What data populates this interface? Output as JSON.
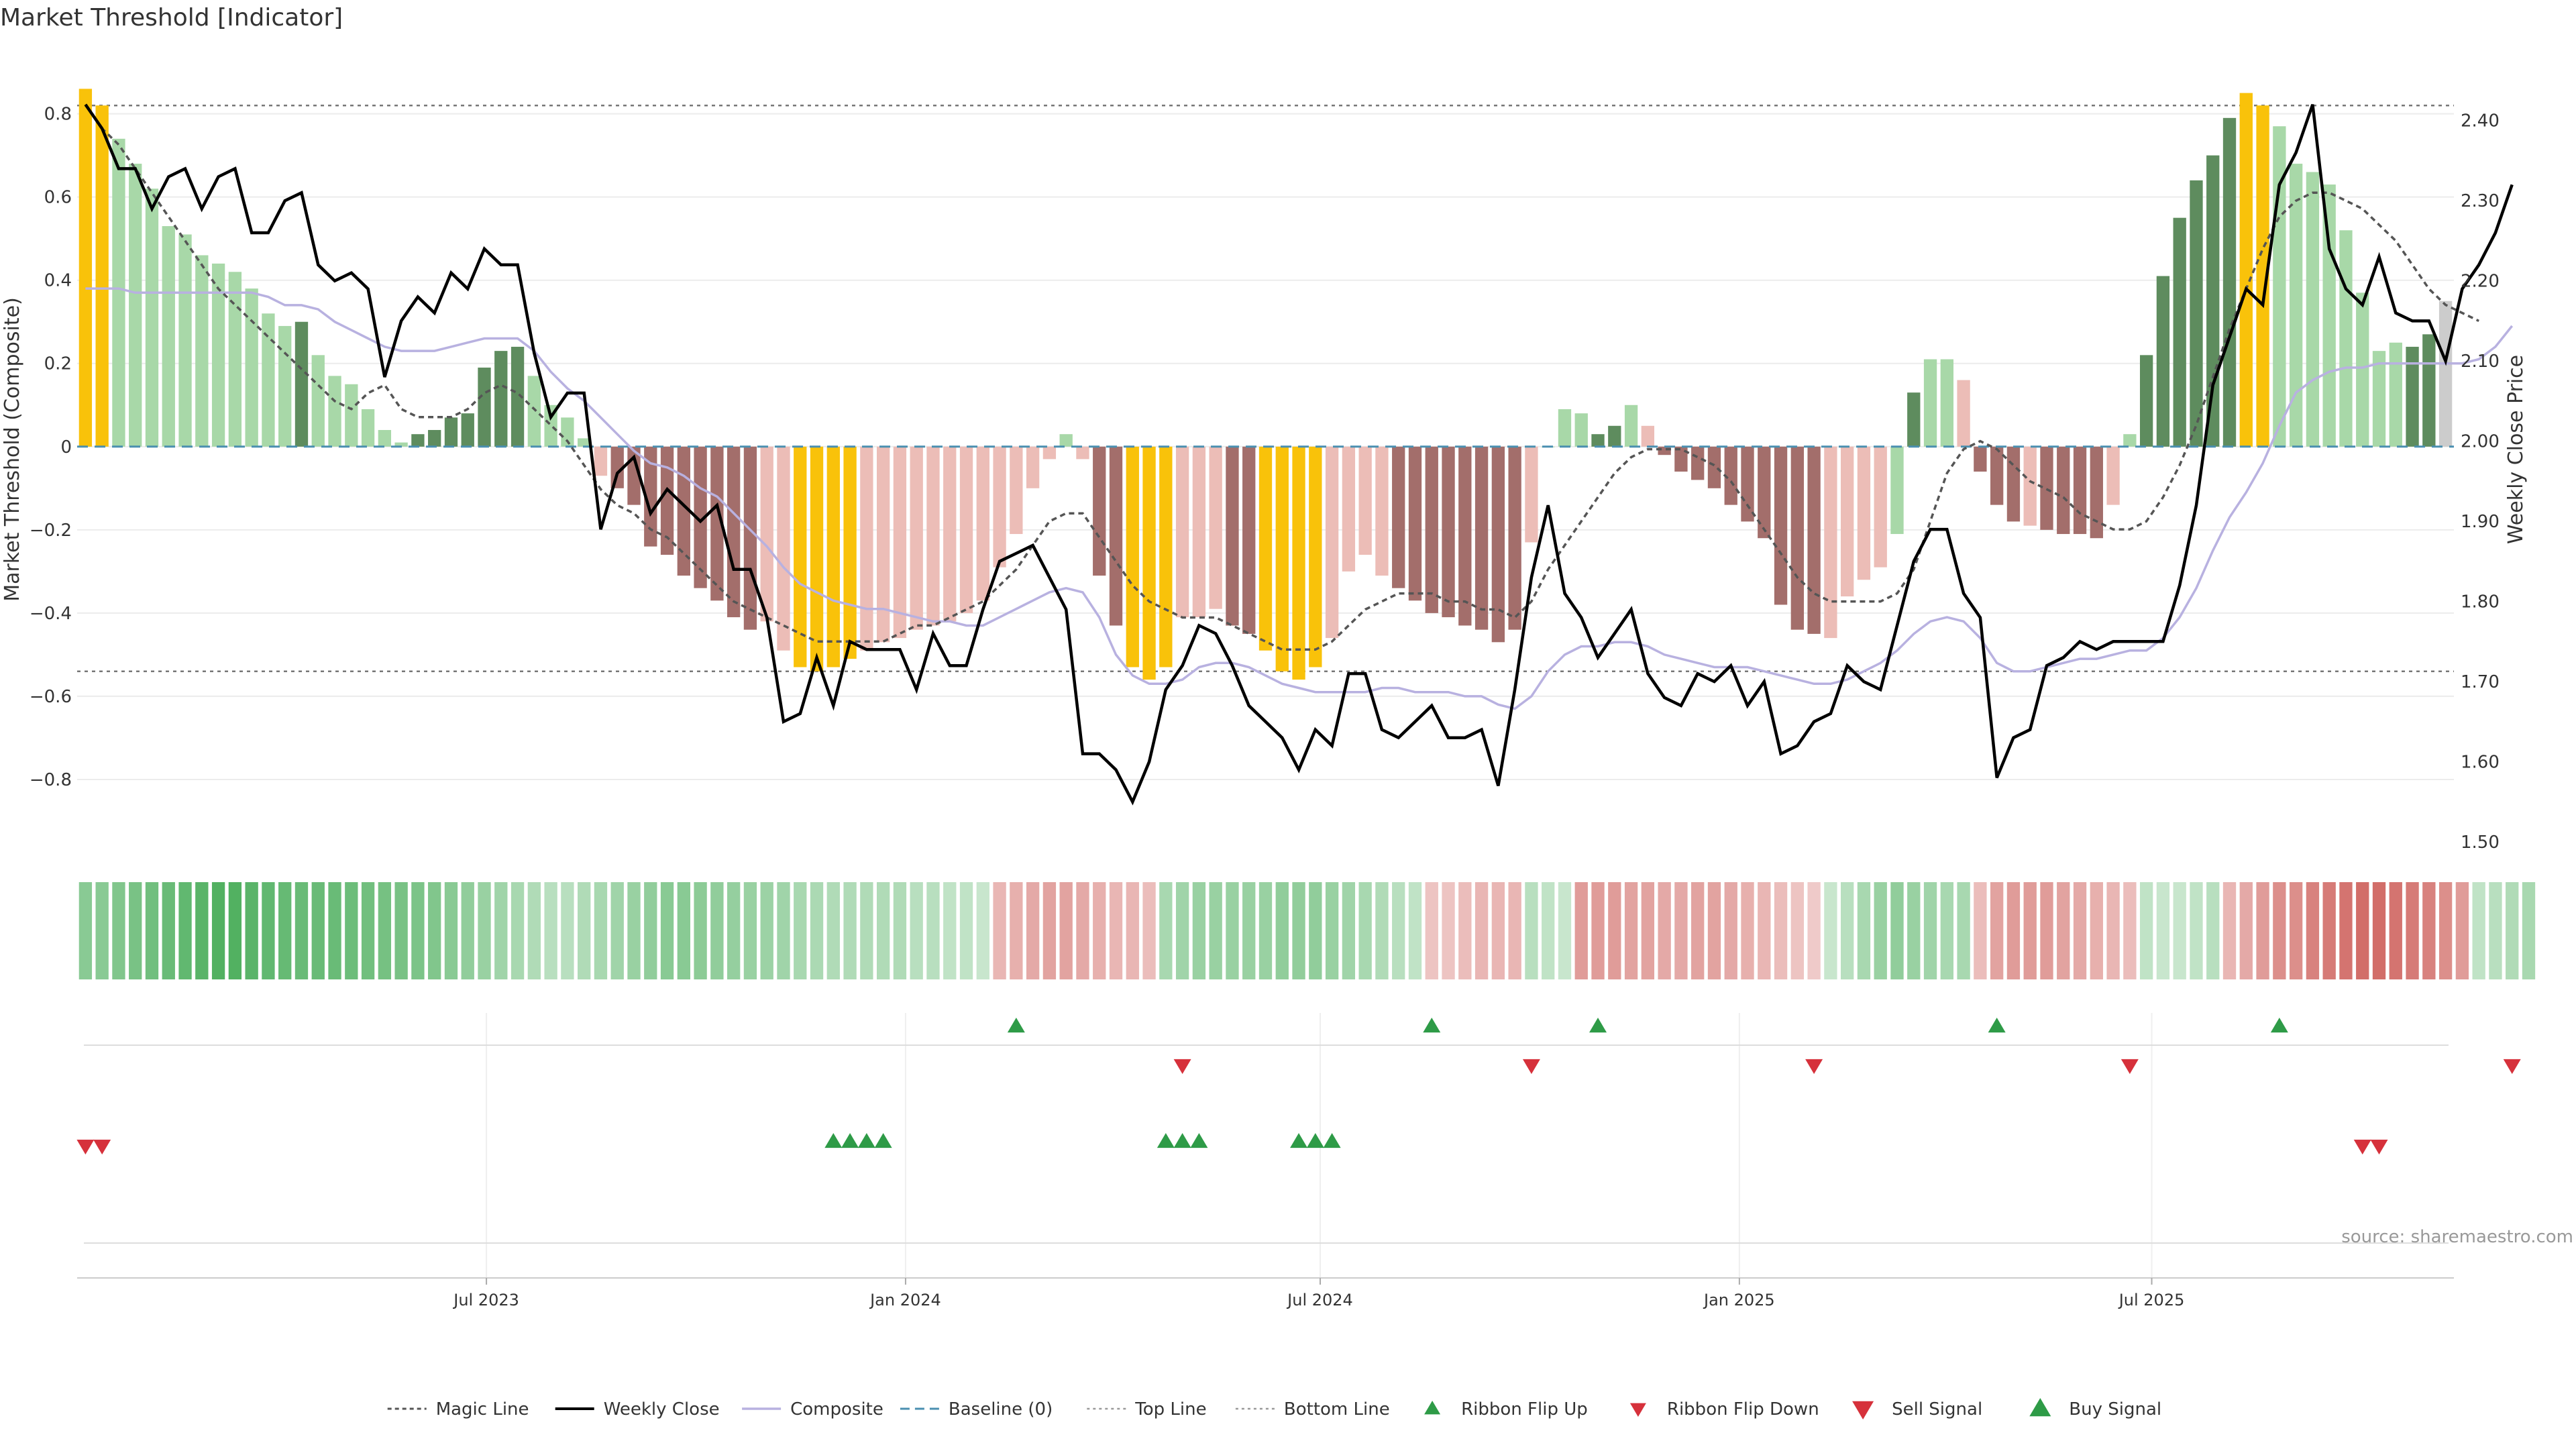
{
  "chart_data": {
    "type": "bar",
    "title": "Market Threshold [Indicator]",
    "ylabel": "Market Threshold (Composite)",
    "ylabel_right": "Weekly Close Price",
    "source": "source: sharemaestro.com",
    "ylim": [
      -0.95,
      0.88
    ],
    "ylim_right": [
      1.5,
      2.45
    ],
    "yticks": [
      -0.8,
      -0.6,
      -0.4,
      -0.2,
      0,
      0.2,
      0.4,
      0.6,
      0.8
    ],
    "yticks_right": [
      1.5,
      1.6,
      1.7,
      1.8,
      1.9,
      2.0,
      2.1,
      2.2,
      2.3,
      2.4
    ],
    "ytick_labels": [
      "−0.8",
      "−0.6",
      "−0.4",
      "−0.2",
      "0",
      "0.2",
      "0.4",
      "0.6",
      "0.8"
    ],
    "ytick_labels_right": [
      "1.50",
      "1.60",
      "1.70",
      "1.80",
      "1.90",
      "2.00",
      "2.10",
      "2.20",
      "2.30",
      "2.40"
    ],
    "x_start": "2023-01-06",
    "x_end": "2025-11-07",
    "xticks": [
      {
        "date": "2023-07-01",
        "label": "Jul 2023"
      },
      {
        "date": "2024-01-01",
        "label": "Jan 2024"
      },
      {
        "date": "2024-07-01",
        "label": "Jul 2024"
      },
      {
        "date": "2025-01-01",
        "label": "Jan 2025"
      },
      {
        "date": "2025-07-01",
        "label": "Jul 2025"
      }
    ],
    "top_line": 0.82,
    "bottom_line": -0.54,
    "baseline": 0,
    "grid": true,
    "legend_position": "bottom-center",
    "composite": [
      0.86,
      0.82,
      0.74,
      0.68,
      0.62,
      0.53,
      0.51,
      0.46,
      0.44,
      0.42,
      0.38,
      0.32,
      0.29,
      0.3,
      0.22,
      0.17,
      0.15,
      0.09,
      0.04,
      0.01,
      0.03,
      0.04,
      0.07,
      0.08,
      0.19,
      0.23,
      0.24,
      0.17,
      0.1,
      0.07,
      0.02,
      -0.07,
      -0.1,
      -0.14,
      -0.24,
      -0.26,
      -0.31,
      -0.34,
      -0.37,
      -0.41,
      -0.44,
      -0.42,
      -0.49,
      -0.53,
      -0.54,
      -0.53,
      -0.51,
      -0.49,
      -0.47,
      -0.46,
      -0.44,
      -0.43,
      -0.42,
      -0.4,
      -0.37,
      -0.29,
      -0.21,
      -0.1,
      -0.03,
      0.03,
      -0.03,
      -0.31,
      -0.43,
      -0.53,
      -0.56,
      -0.53,
      -0.41,
      -0.41,
      -0.39,
      -0.43,
      -0.45,
      -0.49,
      -0.54,
      -0.56,
      -0.53,
      -0.46,
      -0.3,
      -0.26,
      -0.31,
      -0.34,
      -0.37,
      -0.4,
      -0.41,
      -0.43,
      -0.44,
      -0.47,
      -0.44,
      -0.23,
      0.0,
      0.09,
      0.08,
      0.03,
      0.05,
      0.1,
      0.05,
      -0.02,
      -0.06,
      -0.08,
      -0.1,
      -0.14,
      -0.18,
      -0.22,
      -0.38,
      -0.44,
      -0.45,
      -0.46,
      -0.36,
      -0.32,
      -0.29,
      -0.21,
      0.13,
      0.21,
      0.21,
      0.16,
      -0.06,
      -0.14,
      -0.18,
      -0.19,
      -0.2,
      -0.21,
      -0.21,
      -0.22,
      -0.14,
      0.03,
      0.22,
      0.41,
      0.55,
      0.64,
      0.7,
      0.79,
      0.85,
      0.82,
      0.77,
      0.68,
      0.66,
      0.63,
      0.52,
      0.37,
      0.23,
      0.25,
      0.24,
      0.27,
      0.35
    ],
    "bar_colors": [
      "gold",
      "gold",
      "light-green",
      "light-green",
      "light-green",
      "light-green",
      "light-green",
      "light-green",
      "light-green",
      "light-green",
      "light-green",
      "light-green",
      "light-green",
      "dark-green",
      "light-green",
      "light-green",
      "light-green",
      "light-green",
      "light-green",
      "light-green",
      "dark-green",
      "dark-green",
      "dark-green",
      "dark-green",
      "dark-green",
      "dark-green",
      "dark-green",
      "light-green",
      "light-green",
      "light-green",
      "light-green",
      "light-red",
      "dark-red",
      "dark-red",
      "dark-red",
      "dark-red",
      "dark-red",
      "dark-red",
      "dark-red",
      "dark-red",
      "dark-red",
      "light-red",
      "light-red",
      "gold",
      "gold",
      "gold",
      "gold",
      "light-red",
      "light-red",
      "light-red",
      "light-red",
      "light-red",
      "light-red",
      "light-red",
      "light-red",
      "light-red",
      "light-red",
      "light-red",
      "light-red",
      "light-green",
      "light-red",
      "dark-red",
      "dark-red",
      "gold",
      "gold",
      "gold",
      "light-red",
      "light-red",
      "light-red",
      "dark-red",
      "dark-red",
      "gold",
      "gold",
      "gold",
      "gold",
      "light-red",
      "light-red",
      "light-red",
      "light-red",
      "dark-red",
      "dark-red",
      "dark-red",
      "dark-red",
      "dark-red",
      "dark-red",
      "dark-red",
      "dark-red",
      "light-red",
      "light-green",
      "light-green",
      "light-green",
      "dark-green",
      "dark-green",
      "light-green",
      "light-red",
      "dark-red",
      "dark-red",
      "dark-red",
      "dark-red",
      "dark-red",
      "dark-red",
      "dark-red",
      "dark-red",
      "dark-red",
      "dark-red",
      "light-red",
      "light-red",
      "light-red",
      "light-red",
      "light-green",
      "dark-green",
      "light-green",
      "light-green",
      "light-red",
      "dark-red",
      "dark-red",
      "dark-red",
      "light-red",
      "dark-red",
      "dark-red",
      "dark-red",
      "dark-red",
      "light-red",
      "light-green",
      "dark-green",
      "dark-green",
      "dark-green",
      "dark-green",
      "dark-green",
      "dark-green",
      "gold",
      "gold",
      "light-green",
      "light-green",
      "light-green",
      "light-green",
      "light-green",
      "light-green",
      "light-green",
      "light-green",
      "dark-green",
      "dark-green"
    ],
    "weekly_close": [
      2.42,
      2.39,
      2.34,
      2.34,
      2.29,
      2.33,
      2.34,
      2.29,
      2.33,
      2.34,
      2.26,
      2.26,
      2.3,
      2.31,
      2.22,
      2.2,
      2.21,
      2.19,
      2.08,
      2.15,
      2.18,
      2.16,
      2.21,
      2.19,
      2.24,
      2.22,
      2.22,
      2.11,
      2.03,
      2.06,
      2.06,
      1.89,
      1.96,
      1.98,
      1.91,
      1.94,
      1.92,
      1.9,
      1.92,
      1.84,
      1.84,
      1.78,
      1.65,
      1.66,
      1.73,
      1.67,
      1.75,
      1.74,
      1.74,
      1.74,
      1.69,
      1.76,
      1.72,
      1.72,
      1.79,
      1.85,
      1.86,
      1.87,
      1.83,
      1.79,
      1.61,
      1.61,
      1.59,
      1.55,
      1.6,
      1.69,
      1.72,
      1.77,
      1.76,
      1.72,
      1.67,
      1.65,
      1.63,
      1.59,
      1.64,
      1.62,
      1.71,
      1.71,
      1.64,
      1.63,
      1.65,
      1.67,
      1.63,
      1.63,
      1.64,
      1.57,
      1.69,
      1.83,
      1.92,
      1.81,
      1.78,
      1.73,
      1.76,
      1.79,
      1.71,
      1.68,
      1.67,
      1.71,
      1.7,
      1.72,
      1.67,
      1.7,
      1.61,
      1.62,
      1.65,
      1.66,
      1.72,
      1.7,
      1.69,
      1.77,
      1.85,
      1.89,
      1.89,
      1.81,
      1.78,
      1.58,
      1.63,
      1.64,
      1.72,
      1.73,
      1.75,
      1.74,
      1.75,
      1.75,
      1.75,
      1.75,
      1.82,
      1.92,
      2.07,
      2.13,
      2.19,
      2.17,
      2.32,
      2.36,
      2.42,
      2.24,
      2.19,
      2.17,
      2.23,
      2.16,
      2.15,
      2.15,
      2.1,
      2.19,
      2.22,
      2.26,
      2.32
    ],
    "magic_line": [
      2.42,
      2.39,
      2.37,
      2.34,
      2.31,
      2.28,
      2.25,
      2.22,
      2.19,
      2.17,
      2.15,
      2.13,
      2.11,
      2.09,
      2.07,
      2.05,
      2.04,
      2.06,
      2.07,
      2.04,
      2.03,
      2.03,
      2.03,
      2.04,
      2.06,
      2.07,
      2.06,
      2.04,
      2.02,
      2.0,
      1.97,
      1.94,
      1.92,
      1.91,
      1.89,
      1.88,
      1.86,
      1.84,
      1.82,
      1.8,
      1.79,
      1.78,
      1.77,
      1.76,
      1.75,
      1.75,
      1.75,
      1.75,
      1.75,
      1.76,
      1.77,
      1.77,
      1.78,
      1.79,
      1.8,
      1.82,
      1.84,
      1.87,
      1.9,
      1.91,
      1.91,
      1.88,
      1.85,
      1.82,
      1.8,
      1.79,
      1.78,
      1.78,
      1.78,
      1.77,
      1.76,
      1.75,
      1.74,
      1.74,
      1.74,
      1.75,
      1.77,
      1.79,
      1.8,
      1.81,
      1.81,
      1.81,
      1.8,
      1.8,
      1.79,
      1.79,
      1.78,
      1.8,
      1.84,
      1.87,
      1.9,
      1.93,
      1.96,
      1.98,
      1.99,
      1.99,
      1.99,
      1.98,
      1.97,
      1.95,
      1.92,
      1.89,
      1.86,
      1.83,
      1.81,
      1.8,
      1.8,
      1.8,
      1.8,
      1.81,
      1.84,
      1.9,
      1.96,
      1.99,
      2.0,
      1.99,
      1.97,
      1.95,
      1.94,
      1.93,
      1.91,
      1.9,
      1.89,
      1.89,
      1.9,
      1.93,
      1.97,
      2.02,
      2.08,
      2.14,
      2.19,
      2.24,
      2.28,
      2.3,
      2.31,
      2.31,
      2.3,
      2.29,
      2.27,
      2.25,
      2.22,
      2.19,
      2.17,
      2.16,
      2.15
    ],
    "composite_line": [
      0.38,
      0.38,
      0.38,
      0.37,
      0.37,
      0.37,
      0.37,
      0.37,
      0.37,
      0.37,
      0.37,
      0.36,
      0.34,
      0.34,
      0.33,
      0.3,
      0.28,
      0.26,
      0.24,
      0.23,
      0.23,
      0.23,
      0.24,
      0.25,
      0.26,
      0.26,
      0.26,
      0.23,
      0.18,
      0.14,
      0.11,
      0.07,
      0.03,
      -0.01,
      -0.04,
      -0.05,
      -0.07,
      -0.1,
      -0.12,
      -0.16,
      -0.2,
      -0.24,
      -0.29,
      -0.33,
      -0.35,
      -0.37,
      -0.38,
      -0.39,
      -0.39,
      -0.4,
      -0.41,
      -0.42,
      -0.42,
      -0.43,
      -0.43,
      -0.41,
      -0.39,
      -0.37,
      -0.35,
      -0.34,
      -0.35,
      -0.41,
      -0.5,
      -0.55,
      -0.57,
      -0.57,
      -0.56,
      -0.53,
      -0.52,
      -0.52,
      -0.53,
      -0.55,
      -0.57,
      -0.58,
      -0.59,
      -0.59,
      -0.59,
      -0.59,
      -0.58,
      -0.58,
      -0.59,
      -0.59,
      -0.59,
      -0.6,
      -0.6,
      -0.62,
      -0.63,
      -0.6,
      -0.54,
      -0.5,
      -0.48,
      -0.48,
      -0.47,
      -0.47,
      -0.48,
      -0.5,
      -0.51,
      -0.52,
      -0.53,
      -0.53,
      -0.53,
      -0.54,
      -0.55,
      -0.56,
      -0.57,
      -0.57,
      -0.56,
      -0.54,
      -0.52,
      -0.49,
      -0.45,
      -0.42,
      -0.41,
      -0.42,
      -0.46,
      -0.52,
      -0.54,
      -0.54,
      -0.53,
      -0.52,
      -0.51,
      -0.51,
      -0.5,
      -0.49,
      -0.49,
      -0.46,
      -0.41,
      -0.34,
      -0.25,
      -0.17,
      -0.11,
      -0.04,
      0.05,
      0.13,
      0.16,
      0.18,
      0.19,
      0.19,
      0.2,
      0.2,
      0.2,
      0.2,
      0.2,
      0.2,
      0.21,
      0.24,
      0.29
    ],
    "ribbon_values": [
      0.5,
      0.5,
      0.55,
      0.6,
      0.65,
      0.7,
      0.75,
      0.8,
      0.85,
      0.85,
      0.8,
      0.75,
      0.72,
      0.7,
      0.7,
      0.7,
      0.68,
      0.65,
      0.62,
      0.6,
      0.58,
      0.55,
      0.5,
      0.45,
      0.4,
      0.35,
      0.3,
      0.25,
      0.2,
      0.2,
      0.25,
      0.3,
      0.35,
      0.4,
      0.45,
      0.5,
      0.5,
      0.48,
      0.45,
      0.42,
      0.4,
      0.38,
      0.35,
      0.3,
      0.28,
      0.25,
      0.25,
      0.25,
      0.25,
      0.25,
      0.2,
      0.2,
      0.15,
      0.15,
      0.1,
      -0.3,
      -0.35,
      -0.4,
      -0.45,
      -0.45,
      -0.4,
      -0.35,
      -0.3,
      -0.3,
      -0.25,
      0.3,
      0.35,
      0.4,
      0.4,
      0.4,
      0.4,
      0.4,
      0.45,
      0.45,
      0.45,
      0.4,
      0.35,
      0.3,
      0.25,
      0.2,
      0.15,
      -0.2,
      -0.2,
      -0.25,
      -0.3,
      -0.3,
      -0.3,
      0.2,
      0.15,
      0.1,
      -0.5,
      -0.5,
      -0.5,
      -0.45,
      -0.45,
      -0.4,
      -0.4,
      -0.45,
      -0.45,
      -0.4,
      -0.35,
      -0.3,
      -0.25,
      -0.2,
      -0.15,
      0.1,
      0.2,
      0.3,
      0.4,
      0.45,
      0.4,
      0.35,
      0.3,
      0.3,
      -0.25,
      -0.45,
      -0.5,
      -0.5,
      -0.5,
      -0.45,
      -0.4,
      -0.35,
      -0.3,
      -0.25,
      0.15,
      0.1,
      0.1,
      0.15,
      0.2,
      -0.3,
      -0.4,
      -0.5,
      -0.6,
      -0.6,
      -0.7,
      -0.75,
      -0.8,
      -0.85,
      -0.85,
      -0.8,
      -0.75,
      -0.7,
      -0.6,
      -0.5,
      0.15,
      0.2,
      0.25,
      0.3
    ],
    "ribbon_flip_up": [
      56,
      81,
      91,
      115,
      132
    ],
    "ribbon_flip_down": [
      66,
      87,
      104,
      123,
      146
    ],
    "sell_signal": [
      0,
      1,
      137,
      138
    ],
    "buy_signal": [
      45,
      46,
      47,
      48,
      65,
      66,
      67,
      73,
      74,
      75
    ],
    "legend": [
      "Magic Line",
      "Weekly Close",
      "Composite",
      "Baseline (0)",
      "Top Line",
      "Bottom Line",
      "Ribbon Flip Up",
      "Ribbon Flip Down",
      "Sell Signal",
      "Buy Signal"
    ]
  },
  "colors": {
    "gold": "#f9c20a",
    "light-green": "#a8d8a8",
    "dark-green": "#5e8c5e",
    "light-red": "#ecbdb7",
    "dark-red": "#a36e6b",
    "weekly_close": "#000000",
    "composite_line": "#b8b1e0",
    "magic_line": "#555555",
    "baseline": "#4a8fb0",
    "ribbon_neg": "#cc5a55",
    "ribbon_pos": "#3aa64c",
    "up_marker": "#2e9b47",
    "down_marker": "#d6313b"
  }
}
